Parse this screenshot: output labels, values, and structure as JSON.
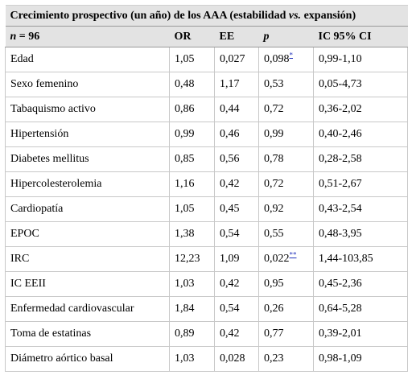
{
  "table": {
    "caption_pre": "Crecimiento prospectivo (un año) de los AAA (estabilidad ",
    "caption_vs": "vs.",
    "caption_post": " expansión)",
    "headers": {
      "n": "n",
      "n_rest": " = 96",
      "or": "OR",
      "ee": "EE",
      "p": "p",
      "ic": "IC 95% CI"
    },
    "rows": [
      {
        "label": "Edad",
        "or": "1,05",
        "ee": "0,027",
        "p": "0,098",
        "note": "*",
        "ic": "0,99-1,10"
      },
      {
        "label": "Sexo femenino",
        "or": "0,48",
        "ee": "1,17",
        "p": "0,53",
        "note": "",
        "ic": "0,05-4,73"
      },
      {
        "label": "Tabaquismo activo",
        "or": "0,86",
        "ee": "0,44",
        "p": "0,72",
        "note": "",
        "ic": "0,36-2,02"
      },
      {
        "label": "Hipertensión",
        "or": "0,99",
        "ee": "0,46",
        "p": "0,99",
        "note": "",
        "ic": "0,40-2,46"
      },
      {
        "label": "Diabetes mellitus",
        "or": "0,85",
        "ee": "0,56",
        "p": "0,78",
        "note": "",
        "ic": "0,28-2,58"
      },
      {
        "label": "Hipercolesterolemia",
        "or": "1,16",
        "ee": "0,42",
        "p": "0,72",
        "note": "",
        "ic": "0,51-2,67"
      },
      {
        "label": "Cardiopatía",
        "or": "1,05",
        "ee": "0,45",
        "p": "0,92",
        "note": "",
        "ic": "0,43-2,54"
      },
      {
        "label": "EPOC",
        "or": "1,38",
        "ee": "0,54",
        "p": "0,55",
        "note": "",
        "ic": "0,48-3,95"
      },
      {
        "label": "IRC",
        "or": "12,23",
        "ee": "1,09",
        "p": "0,022",
        "note": "**",
        "ic": "1,44-103,85"
      },
      {
        "label": "IC EEII",
        "or": "1,03",
        "ee": "0,42",
        "p": "0,95",
        "note": "",
        "ic": "0,45-2,36"
      },
      {
        "label": "Enfermedad cardiovascular",
        "or": "1,84",
        "ee": "0,54",
        "p": "0,26",
        "note": "",
        "ic": "0,64-5,28"
      },
      {
        "label": "Toma de estatinas",
        "or": "0,89",
        "ee": "0,42",
        "p": "0,77",
        "note": "",
        "ic": "0,39-2,01"
      },
      {
        "label": "Diámetro aórtico basal",
        "or": "1,03",
        "ee": "0,028",
        "p": "0,23",
        "note": "",
        "ic": "0,98-1,09"
      }
    ]
  }
}
